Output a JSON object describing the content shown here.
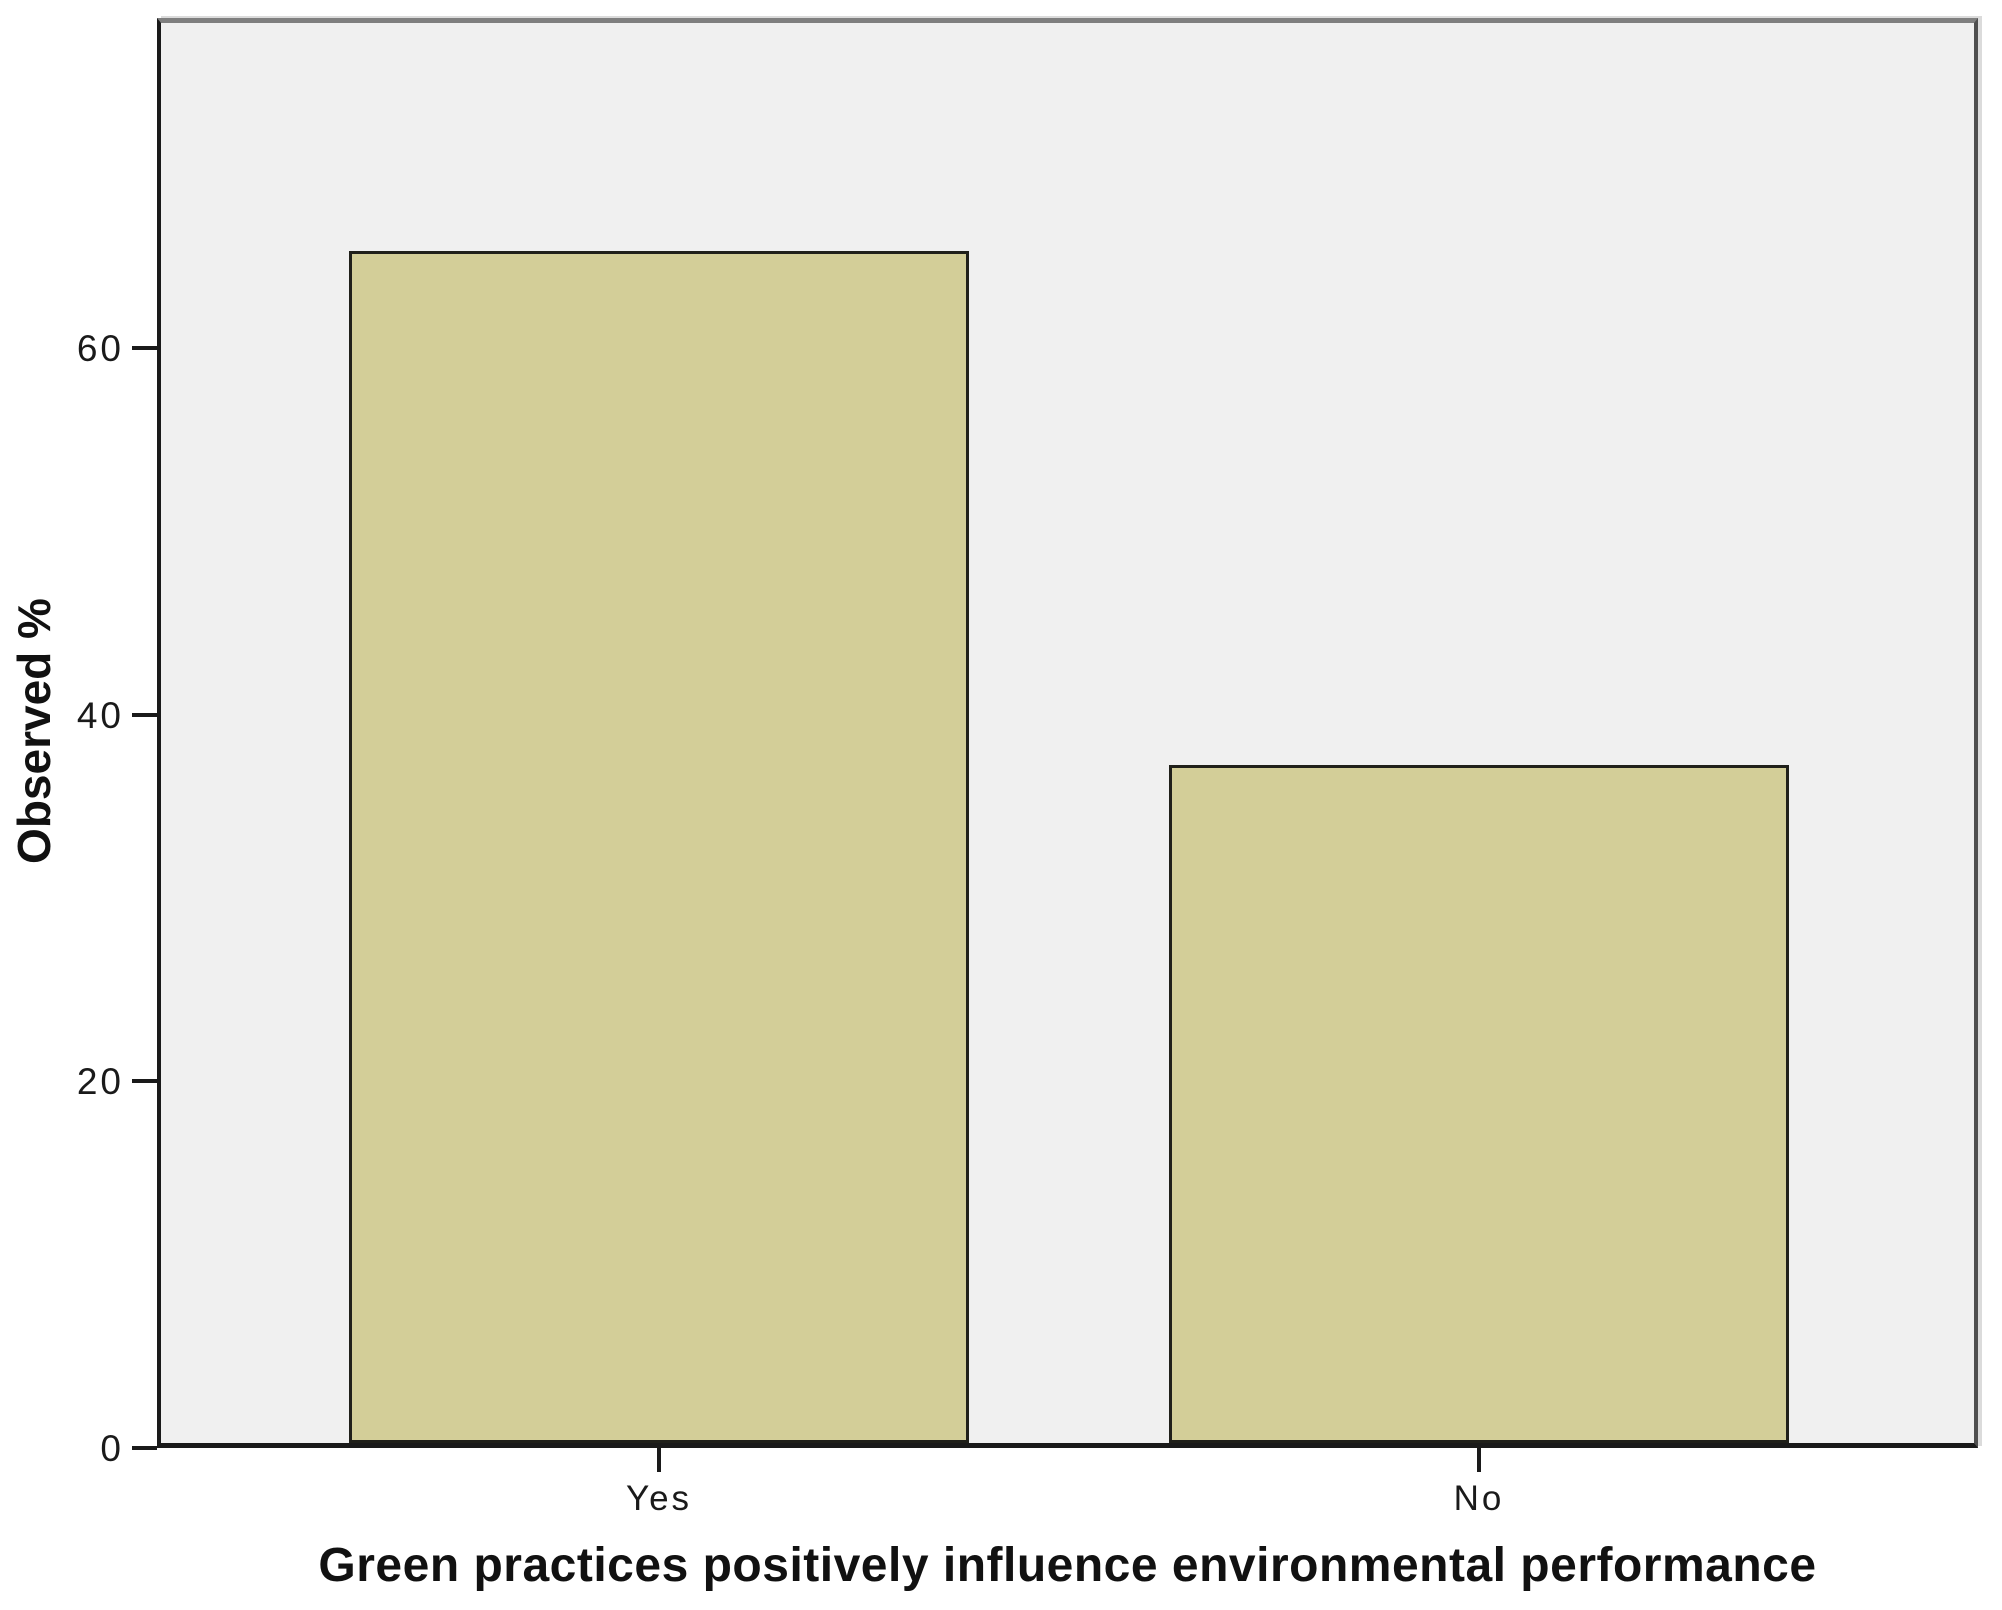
{
  "figure": {
    "y_axis_title": "Observed %",
    "x_axis_title": "Green practices positively influence environmental performance"
  },
  "chart_data": {
    "type": "bar",
    "categories": [
      "Yes",
      "No"
    ],
    "values": [
      65,
      37
    ],
    "title": "",
    "xlabel": "Green practices positively influence environmental performance",
    "ylabel": "Observed %",
    "ylim": [
      0,
      78
    ],
    "yticks": [
      0,
      20,
      40,
      60
    ],
    "grid": false,
    "legend": "none",
    "colors": {
      "bar_fill": "#D3CE98",
      "bar_border": "#20201A",
      "plot_background": "#F0F0F0",
      "axis_line": "#1A1A1A",
      "frame_line": "#7F7F7F",
      "text": "#111111"
    }
  }
}
